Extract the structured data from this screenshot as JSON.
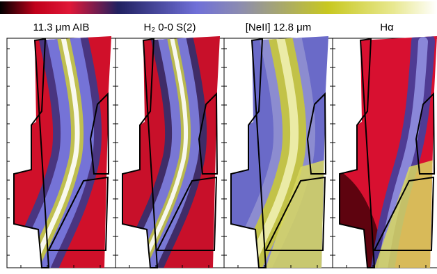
{
  "panels": [
    {
      "title": "11.3 μm AIB"
    },
    {
      "title": "H₂ 0-0 S(2)"
    },
    {
      "title": "[NeII] 12.8 μm"
    },
    {
      "title": "Hα"
    }
  ]
}
